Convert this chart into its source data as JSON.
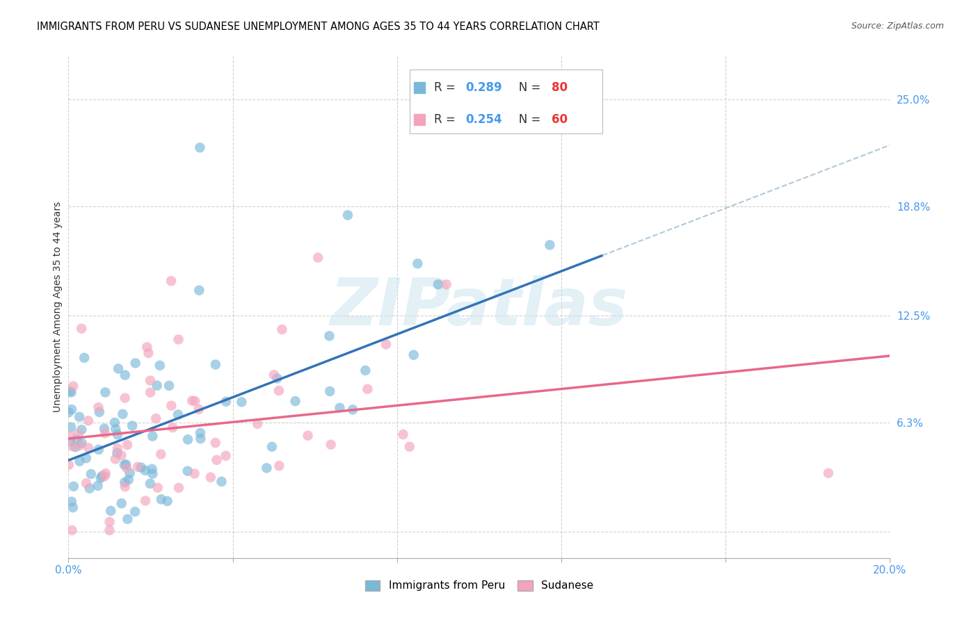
{
  "title": "IMMIGRANTS FROM PERU VS SUDANESE UNEMPLOYMENT AMONG AGES 35 TO 44 YEARS CORRELATION CHART",
  "source": "Source: ZipAtlas.com",
  "ylabel": "Unemployment Among Ages 35 to 44 years",
  "xlim": [
    0.0,
    0.2
  ],
  "ylim": [
    -0.015,
    0.275
  ],
  "xtick_pos": [
    0.0,
    0.04,
    0.08,
    0.12,
    0.16,
    0.2
  ],
  "xticklabels": [
    "0.0%",
    "",
    "",
    "",
    "",
    "20.0%"
  ],
  "ytick_positions": [
    0.0,
    0.063,
    0.125,
    0.188,
    0.25
  ],
  "ytick_labels": [
    "",
    "6.3%",
    "12.5%",
    "18.8%",
    "25.0%"
  ],
  "blue_color": "#7ab8d9",
  "pink_color": "#f4a4bb",
  "blue_line_color": "#3373b8",
  "pink_line_color": "#e8688a",
  "dashed_color": "#b0c8d8",
  "watermark": "ZIPatlas",
  "blue_R": 0.289,
  "blue_N": 80,
  "pink_R": 0.254,
  "pink_N": 60,
  "R_text_color": "#4499ee",
  "N_text_color": "#ee3333",
  "legend_blue_R": "0.289",
  "legend_blue_N": "80",
  "legend_pink_R": "0.254",
  "legend_pink_N": "60"
}
